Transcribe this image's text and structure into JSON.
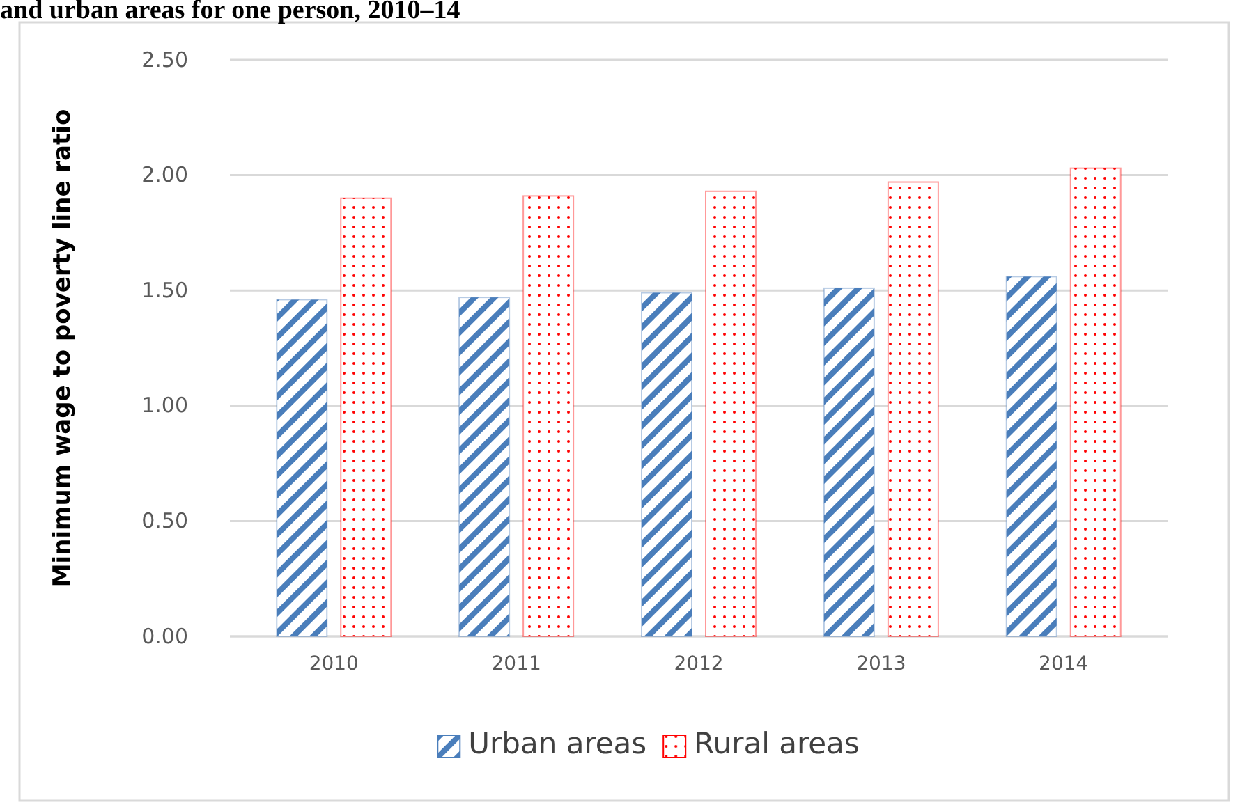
{
  "chart_data": {
    "type": "bar",
    "title": "and urban areas for one person, 2010–14",
    "ylabel": "Minimum wage to poverty line ratio",
    "categories": [
      "2010",
      "2011",
      "2012",
      "2013",
      "2014"
    ],
    "series": [
      {
        "name": "Urban areas",
        "color": "#4a7ebb",
        "values": [
          1.46,
          1.47,
          1.49,
          1.51,
          1.56
        ]
      },
      {
        "name": "Rural areas",
        "color": "#ff0000",
        "values": [
          1.9,
          1.91,
          1.93,
          1.97,
          2.03
        ]
      }
    ],
    "ylim": [
      0,
      2.5
    ],
    "yticks": [
      {
        "value": 0,
        "label": "0.00"
      },
      {
        "value": 0.5,
        "label": "0.50"
      },
      {
        "value": 1,
        "label": "1.00"
      },
      {
        "value": 1.5,
        "label": "1.50"
      },
      {
        "value": 2,
        "label": "2.00"
      },
      {
        "value": 2.5,
        "label": "2.50"
      }
    ],
    "grid": "y",
    "legend": "bottom"
  }
}
